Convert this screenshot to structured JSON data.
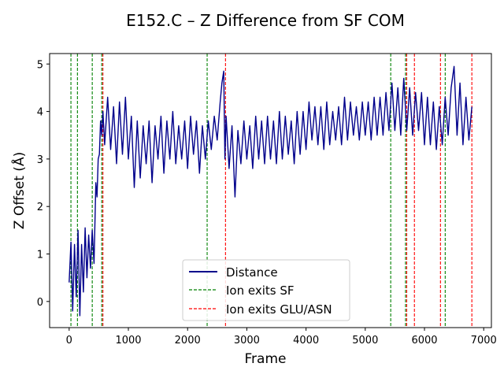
{
  "chart_data": {
    "type": "line",
    "title": "E152.C – Z Difference from SF COM",
    "xlabel": "Frame",
    "ylabel": "Z Offset (Å)",
    "xlim": [
      -330,
      7130
    ],
    "ylim": [
      -0.55,
      5.22
    ],
    "xticks": [
      0,
      1000,
      2000,
      3000,
      4000,
      5000,
      6000,
      7000
    ],
    "yticks": [
      0,
      1,
      2,
      3,
      4,
      5
    ],
    "grid": false,
    "legend_position": "lower-center",
    "series": [
      {
        "name": "Distance",
        "color": "#00008b",
        "points": [
          [
            0,
            0.4
          ],
          [
            30,
            1.25
          ],
          [
            60,
            -0.2
          ],
          [
            90,
            1.2
          ],
          [
            120,
            0.1
          ],
          [
            150,
            1.5
          ],
          [
            180,
            -0.3
          ],
          [
            210,
            1.2
          ],
          [
            240,
            0.2
          ],
          [
            270,
            1.55
          ],
          [
            300,
            0.5
          ],
          [
            330,
            1.4
          ],
          [
            360,
            0.7
          ],
          [
            390,
            1.5
          ],
          [
            420,
            0.8
          ],
          [
            450,
            2.5
          ],
          [
            470,
            2.2
          ],
          [
            490,
            3.0
          ],
          [
            510,
            3.1
          ],
          [
            530,
            3.8
          ],
          [
            550,
            3.5
          ],
          [
            570,
            4.0
          ],
          [
            600,
            3.3
          ],
          [
            650,
            4.3
          ],
          [
            700,
            3.2
          ],
          [
            750,
            4.1
          ],
          [
            800,
            2.9
          ],
          [
            850,
            4.2
          ],
          [
            900,
            3.1
          ],
          [
            950,
            4.3
          ],
          [
            1000,
            3.0
          ],
          [
            1050,
            3.9
          ],
          [
            1100,
            2.4
          ],
          [
            1150,
            3.8
          ],
          [
            1200,
            2.6
          ],
          [
            1250,
            3.7
          ],
          [
            1300,
            2.9
          ],
          [
            1350,
            3.8
          ],
          [
            1400,
            2.5
          ],
          [
            1450,
            3.7
          ],
          [
            1500,
            3.0
          ],
          [
            1550,
            3.9
          ],
          [
            1600,
            2.7
          ],
          [
            1650,
            3.8
          ],
          [
            1700,
            3.0
          ],
          [
            1750,
            4.0
          ],
          [
            1800,
            2.9
          ],
          [
            1850,
            3.7
          ],
          [
            1900,
            3.0
          ],
          [
            1950,
            3.8
          ],
          [
            2000,
            2.8
          ],
          [
            2050,
            3.9
          ],
          [
            2100,
            3.1
          ],
          [
            2150,
            3.8
          ],
          [
            2200,
            2.7
          ],
          [
            2250,
            3.7
          ],
          [
            2300,
            3.0
          ],
          [
            2350,
            3.8
          ],
          [
            2400,
            3.2
          ],
          [
            2450,
            3.9
          ],
          [
            2500,
            3.4
          ],
          [
            2550,
            4.2
          ],
          [
            2580,
            4.6
          ],
          [
            2610,
            4.85
          ],
          [
            2630,
            3.0
          ],
          [
            2650,
            3.9
          ],
          [
            2700,
            2.8
          ],
          [
            2750,
            3.7
          ],
          [
            2800,
            2.2
          ],
          [
            2850,
            3.6
          ],
          [
            2900,
            2.9
          ],
          [
            2950,
            3.8
          ],
          [
            3000,
            3.0
          ],
          [
            3050,
            3.7
          ],
          [
            3100,
            2.8
          ],
          [
            3150,
            3.9
          ],
          [
            3200,
            3.0
          ],
          [
            3250,
            3.8
          ],
          [
            3300,
            2.9
          ],
          [
            3350,
            3.9
          ],
          [
            3400,
            3.0
          ],
          [
            3450,
            3.8
          ],
          [
            3500,
            2.9
          ],
          [
            3550,
            4.0
          ],
          [
            3600,
            3.0
          ],
          [
            3650,
            3.9
          ],
          [
            3700,
            3.1
          ],
          [
            3750,
            3.8
          ],
          [
            3800,
            2.9
          ],
          [
            3850,
            4.0
          ],
          [
            3900,
            3.1
          ],
          [
            3950,
            4.0
          ],
          [
            4000,
            3.2
          ],
          [
            4050,
            4.2
          ],
          [
            4100,
            3.4
          ],
          [
            4150,
            4.1
          ],
          [
            4200,
            3.3
          ],
          [
            4250,
            4.1
          ],
          [
            4300,
            3.2
          ],
          [
            4350,
            4.2
          ],
          [
            4400,
            3.3
          ],
          [
            4450,
            4.0
          ],
          [
            4500,
            3.4
          ],
          [
            4550,
            4.1
          ],
          [
            4600,
            3.3
          ],
          [
            4650,
            4.3
          ],
          [
            4700,
            3.4
          ],
          [
            4750,
            4.2
          ],
          [
            4800,
            3.5
          ],
          [
            4850,
            4.1
          ],
          [
            4900,
            3.4
          ],
          [
            4950,
            4.2
          ],
          [
            5000,
            3.5
          ],
          [
            5050,
            4.2
          ],
          [
            5100,
            3.4
          ],
          [
            5150,
            4.3
          ],
          [
            5200,
            3.5
          ],
          [
            5250,
            4.3
          ],
          [
            5300,
            3.5
          ],
          [
            5350,
            4.4
          ],
          [
            5400,
            3.6
          ],
          [
            5450,
            4.6
          ],
          [
            5500,
            3.6
          ],
          [
            5550,
            4.5
          ],
          [
            5600,
            3.5
          ],
          [
            5650,
            4.7
          ],
          [
            5700,
            3.6
          ],
          [
            5750,
            4.5
          ],
          [
            5800,
            3.5
          ],
          [
            5850,
            4.4
          ],
          [
            5900,
            3.6
          ],
          [
            5950,
            4.4
          ],
          [
            6000,
            3.3
          ],
          [
            6050,
            4.3
          ],
          [
            6100,
            3.3
          ],
          [
            6150,
            4.2
          ],
          [
            6200,
            3.2
          ],
          [
            6250,
            4.1
          ],
          [
            6300,
            3.3
          ],
          [
            6350,
            4.3
          ],
          [
            6400,
            3.5
          ],
          [
            6450,
            4.5
          ],
          [
            6500,
            4.95
          ],
          [
            6550,
            3.5
          ],
          [
            6600,
            4.6
          ],
          [
            6650,
            3.3
          ],
          [
            6700,
            4.3
          ],
          [
            6750,
            3.4
          ],
          [
            6800,
            4.1
          ]
        ]
      }
    ],
    "vlines": [
      {
        "name": "Ion exits SF",
        "color": "#008000",
        "x": [
          30,
          140,
          390,
          550,
          2330,
          5430,
          5680,
          6350
        ]
      },
      {
        "name": "Ion exits GLU/ASN",
        "color": "#ff0000",
        "x": [
          570,
          2640,
          5700,
          5830,
          6270,
          6800
        ]
      }
    ]
  }
}
